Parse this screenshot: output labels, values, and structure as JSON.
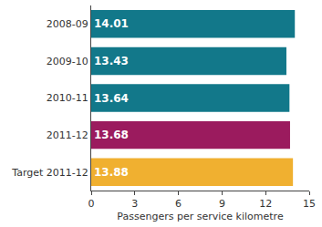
{
  "chart_data": {
    "type": "bar",
    "orientation": "horizontal",
    "categories": [
      "2008-09",
      "2009-10",
      "2010-11",
      "2011-12",
      "Target 2011-12"
    ],
    "values": [
      14.01,
      13.43,
      13.64,
      13.68,
      13.88
    ],
    "colors": [
      "#12788a",
      "#12788a",
      "#12788a",
      "#9b1b5e",
      "#f0b030"
    ],
    "xlabel": "Passengers per service kilometre",
    "xlim": [
      0,
      15
    ],
    "xticks": [
      0,
      3,
      6,
      9,
      12,
      15
    ],
    "grid": false,
    "data_labels": true
  }
}
